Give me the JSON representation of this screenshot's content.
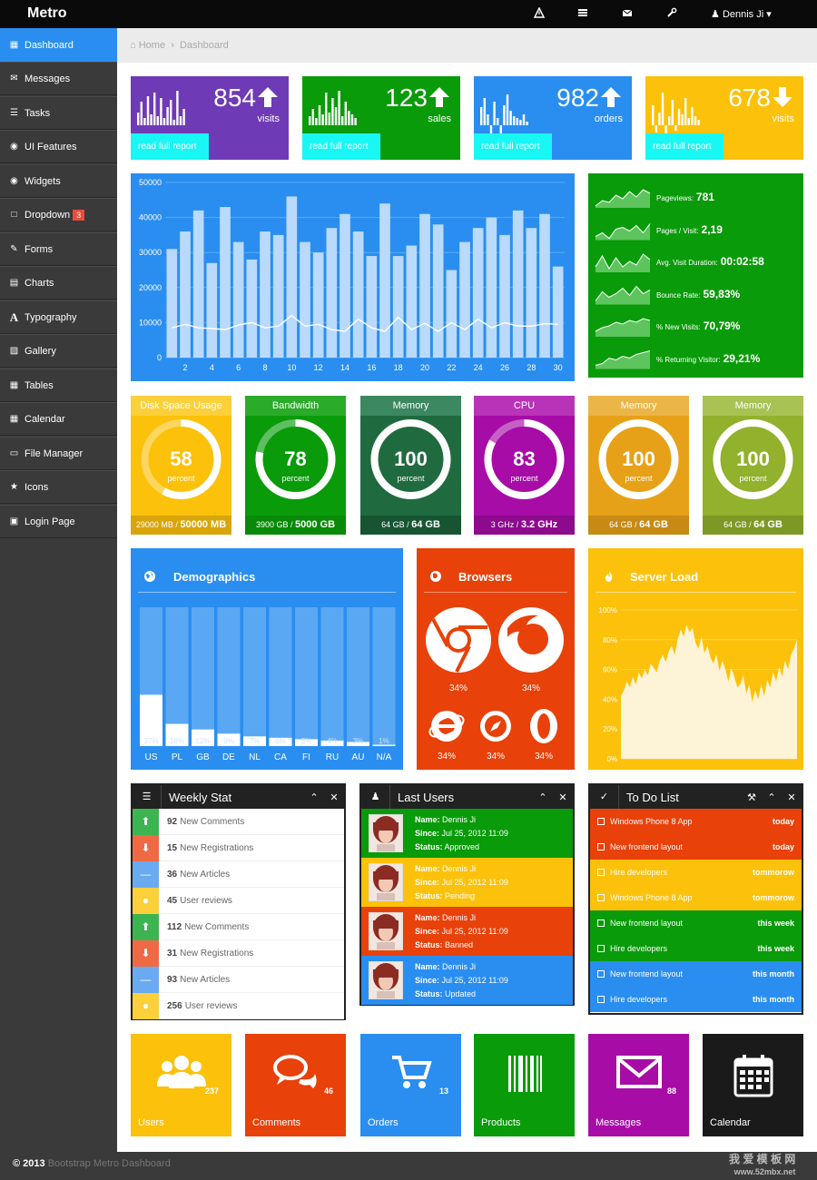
{
  "header": {
    "brand": "Metro",
    "user": "Dennis Ji ▾",
    "icons": [
      "warning-icon",
      "tasks-icon",
      "envelope-icon",
      "wrench-icon"
    ]
  },
  "sidebar": {
    "items": [
      {
        "label": "Dashboard",
        "icon": "dashboard-icon"
      },
      {
        "label": "Messages",
        "icon": "envelope-icon"
      },
      {
        "label": "Tasks",
        "icon": "tasks-icon"
      },
      {
        "label": "UI Features",
        "icon": "eye-icon"
      },
      {
        "label": "Widgets",
        "icon": "dashboard-icon"
      },
      {
        "label": "Dropdown",
        "icon": "folder-icon",
        "badge": "3"
      },
      {
        "label": "Forms",
        "icon": "edit-icon"
      },
      {
        "label": "Charts",
        "icon": "list-icon"
      },
      {
        "label": "Typography",
        "icon": "font-icon"
      },
      {
        "label": "Gallery",
        "icon": "picture-icon"
      },
      {
        "label": "Tables",
        "icon": "table-icon"
      },
      {
        "label": "Calendar",
        "icon": "calendar-icon"
      },
      {
        "label": "File Manager",
        "icon": "folder-open-icon"
      },
      {
        "label": "Icons",
        "icon": "star-icon"
      },
      {
        "label": "Login Page",
        "icon": "lock-icon"
      }
    ]
  },
  "breadcrumb": {
    "home": "Home",
    "current": "Dashboard"
  },
  "stats": [
    {
      "value": "854",
      "label": "visits",
      "trend": "up",
      "link": "read full report",
      "color": "#6f3ab5"
    },
    {
      "value": "123",
      "label": "sales",
      "trend": "up",
      "link": "read full report",
      "color": "#0a9b0a"
    },
    {
      "value": "982",
      "label": "orders",
      "trend": "up",
      "link": "read full report",
      "color": "#2a8ef0"
    },
    {
      "value": "678",
      "label": "visits",
      "trend": "down",
      "link": "read full report",
      "color": "#fcc10a"
    }
  ],
  "chart_data": {
    "type": "bar",
    "x": [
      1,
      2,
      3,
      4,
      5,
      6,
      7,
      8,
      9,
      10,
      11,
      12,
      13,
      14,
      15,
      16,
      17,
      18,
      19,
      20,
      21,
      22,
      23,
      24,
      25,
      26,
      27,
      28,
      29,
      30
    ],
    "xticks": [
      "2",
      "4",
      "6",
      "8",
      "10",
      "12",
      "14",
      "16",
      "18",
      "20",
      "22",
      "24",
      "26",
      "28",
      "30"
    ],
    "yticks": [
      "0",
      "10000",
      "20000",
      "30000",
      "40000",
      "50000"
    ],
    "ylim": [
      0,
      50000
    ],
    "series": [
      {
        "values": [
          31000,
          36000,
          42000,
          27000,
          43000,
          33000,
          28000,
          36000,
          35000,
          46000,
          33000,
          30000,
          37000,
          41000,
          36000,
          29000,
          44000,
          29000,
          32000,
          41000,
          38000,
          25000,
          33000,
          37000,
          40000,
          35000,
          42000,
          37000,
          41000,
          26000
        ]
      },
      {
        "values": [
          8500,
          9500,
          8500,
          8300,
          8000,
          9300,
          10000,
          8500,
          9000,
          12000,
          9000,
          9500,
          8000,
          7500,
          11000,
          8500,
          7500,
          11500,
          8000,
          9800,
          7500,
          10000,
          8000,
          11000,
          8500,
          10000,
          9000,
          9000,
          9700,
          9500
        ]
      }
    ]
  },
  "traffic": [
    {
      "label": "Pageviews:",
      "value": "781"
    },
    {
      "label": "Pages / Visit:",
      "value": "2,19"
    },
    {
      "label": "Avg. Visit Duration:",
      "value": "00:02:58"
    },
    {
      "label": "Bounce Rate:",
      "value": "59,83%"
    },
    {
      "label": "% New Visits:",
      "value": "70,79%"
    },
    {
      "label": "% Returning Visitor:",
      "value": "29,21%"
    }
  ],
  "gauges": [
    {
      "title": "Disk Space Usage",
      "value": "58",
      "unit": "percent",
      "used": "29000 MB /",
      "total": "50000 MB",
      "pct": 58,
      "color": "#fcc10a",
      "head": "#fcd03a",
      "foot": "#d9a50a"
    },
    {
      "title": "Bandwidth",
      "value": "78",
      "unit": "percent",
      "used": "3900 GB /",
      "total": "5000 GB",
      "pct": 78,
      "color": "#0a9b0a",
      "head": "#2aab2a",
      "foot": "#088a08"
    },
    {
      "title": "Memory",
      "value": "100",
      "unit": "percent",
      "used": "64 GB /",
      "total": "64 GB",
      "pct": 100,
      "color": "#1f6b3f",
      "head": "#3c8860",
      "foot": "#175532"
    },
    {
      "title": "CPU",
      "value": "83",
      "unit": "percent",
      "used": "3 GHz /",
      "total": "3.2 GHz",
      "pct": 83,
      "color": "#a70ca7",
      "head": "#b933b9",
      "foot": "#8d0a8d"
    },
    {
      "title": "Memory",
      "value": "100",
      "unit": "percent",
      "used": "64 GB /",
      "total": "64 GB",
      "pct": 100,
      "color": "#e7a118",
      "head": "#ebb548",
      "foot": "#c78a12"
    },
    {
      "title": "Memory",
      "value": "100",
      "unit": "percent",
      "used": "64 GB /",
      "total": "64 GB",
      "pct": 100,
      "color": "#92b12c",
      "head": "#a8c254",
      "foot": "#7d9925"
    }
  ],
  "demographics": {
    "title": "Demographics",
    "bars": [
      {
        "country": "US",
        "pct": 37,
        "label": "37%"
      },
      {
        "country": "PL",
        "pct": 16,
        "label": "16%"
      },
      {
        "country": "GB",
        "pct": 12,
        "label": "12%"
      },
      {
        "country": "DE",
        "pct": 9,
        "label": "9%"
      },
      {
        "country": "NL",
        "pct": 7,
        "label": "7%"
      },
      {
        "country": "CA",
        "pct": 6,
        "label": "6%"
      },
      {
        "country": "FI",
        "pct": 5,
        "label": "5%"
      },
      {
        "country": "RU",
        "pct": 4,
        "label": "4%"
      },
      {
        "country": "AU",
        "pct": 3,
        "label": "3%"
      },
      {
        "country": "N/A",
        "pct": 1,
        "label": "1%"
      }
    ]
  },
  "browsers": {
    "title": "Browsers",
    "items": [
      {
        "name": "chrome-icon",
        "pct": "34%"
      },
      {
        "name": "firefox-icon",
        "pct": "34%"
      },
      {
        "name": "ie-icon",
        "pct": "34%"
      },
      {
        "name": "safari-icon",
        "pct": "34%"
      },
      {
        "name": "opera-icon",
        "pct": "34%"
      }
    ]
  },
  "server_load": {
    "title": "Server Load",
    "yticks": [
      "0%",
      "20%",
      "40%",
      "60%",
      "80%",
      "100%"
    ],
    "values": [
      42,
      46,
      52,
      48,
      55,
      50,
      58,
      54,
      60,
      56,
      64,
      61,
      58,
      66,
      70,
      65,
      72,
      76,
      70,
      80,
      87,
      82,
      90,
      85,
      88,
      78,
      74,
      82,
      71,
      76,
      68,
      64,
      70,
      59,
      66,
      60,
      52,
      61,
      55,
      48,
      50,
      56,
      44,
      50,
      38,
      46,
      40,
      50,
      42,
      53,
      48,
      58,
      52,
      62,
      55,
      66,
      60,
      70,
      74,
      80
    ]
  },
  "weekly": {
    "title": "Weekly Stat",
    "rows": [
      {
        "count": "92",
        "text": "New Comments",
        "icon": "arrow-up-icon",
        "color": "#3cb550"
      },
      {
        "count": "15",
        "text": "New Registrations",
        "icon": "arrow-down-icon",
        "color": "#ef6a44"
      },
      {
        "count": "36",
        "text": "New Articles",
        "icon": "minus-icon",
        "color": "#6aaaf0"
      },
      {
        "count": "45",
        "text": "User reviews",
        "icon": "comment-icon",
        "color": "#fcd03a"
      },
      {
        "count": "112",
        "text": "New Comments",
        "icon": "arrow-up-icon",
        "color": "#3cb550"
      },
      {
        "count": "31",
        "text": "New Registrations",
        "icon": "arrow-down-icon",
        "color": "#ef6a44"
      },
      {
        "count": "93",
        "text": "New Articles",
        "icon": "minus-icon",
        "color": "#6aaaf0"
      },
      {
        "count": "256",
        "text": "User reviews",
        "icon": "comment-icon",
        "color": "#fcd03a"
      }
    ]
  },
  "last_users": {
    "title": "Last Users",
    "users": [
      {
        "name": "Dennis Ji",
        "since": "Jul 25, 2012 11:09",
        "status": "Approved",
        "color": "#0a9b0a"
      },
      {
        "name": "Dennis Ji",
        "since": "Jul 25, 2012 11:09",
        "status": "Pending",
        "color": "#fcc10a"
      },
      {
        "name": "Dennis Ji",
        "since": "Jul 25, 2012 11:09",
        "status": "Banned",
        "color": "#e8410a"
      },
      {
        "name": "Dennis Ji",
        "since": "Jul 25, 2012 11:09",
        "status": "Updated",
        "color": "#2a8ef0"
      }
    ],
    "labels": {
      "name": "Name:",
      "since": "Since:",
      "status": "Status:"
    }
  },
  "todo": {
    "title": "To Do List",
    "items": [
      {
        "text": "Windows Phone 8 App",
        "when": "today",
        "color": "#e8410a"
      },
      {
        "text": "New frontend layout",
        "when": "today",
        "color": "#e8410a"
      },
      {
        "text": "Hire developers",
        "when": "tommorow",
        "color": "#fcc10a"
      },
      {
        "text": "Windows Phone 8 App",
        "when": "tommorow",
        "color": "#fcc10a"
      },
      {
        "text": "New frontend layout",
        "when": "this week",
        "color": "#0a9b0a"
      },
      {
        "text": "Hire developers",
        "when": "this week",
        "color": "#0a9b0a"
      },
      {
        "text": "New frontend layout",
        "when": "this month",
        "color": "#2a8ef0"
      },
      {
        "text": "Hire developers",
        "when": "this month",
        "color": "#2a8ef0"
      }
    ]
  },
  "tiles": [
    {
      "label": "Users",
      "count": "237",
      "icon": "users-icon",
      "color": "#fcc10a"
    },
    {
      "label": "Comments",
      "count": "46",
      "icon": "comments-icon",
      "color": "#e8410a"
    },
    {
      "label": "Orders",
      "count": "13",
      "icon": "cart-icon",
      "color": "#2a8ef0"
    },
    {
      "label": "Products",
      "count": "",
      "icon": "barcode-icon",
      "color": "#0a9b0a"
    },
    {
      "label": "Messages",
      "count": "88",
      "icon": "envelope-icon",
      "color": "#a70ca7"
    },
    {
      "label": "Calendar",
      "count": "",
      "icon": "calendar-icon",
      "color": "#1a1a1a"
    }
  ],
  "footer": {
    "year": "© 2013",
    "text": "Bootstrap Metro Dashboard"
  },
  "watermark": {
    "line1": "我 爱 模 板 网",
    "line2": "www.52mbx.net"
  }
}
